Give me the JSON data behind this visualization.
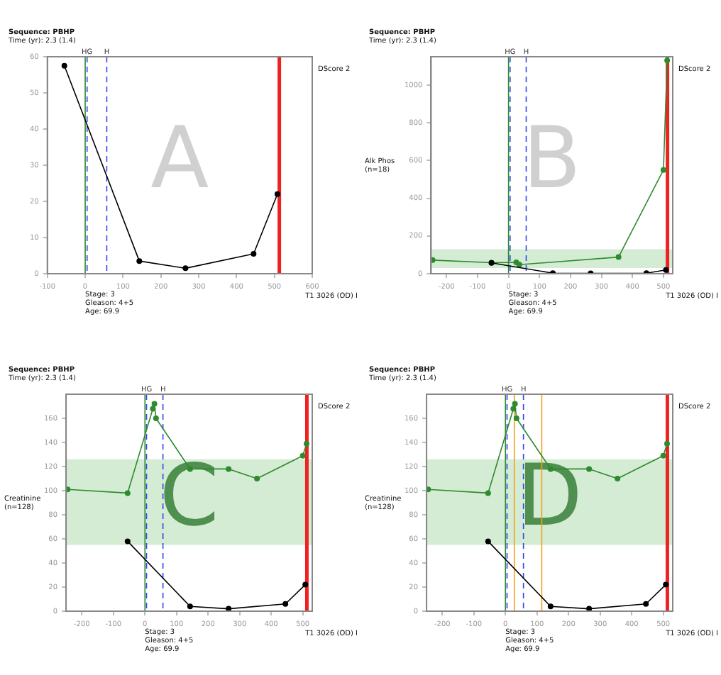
{
  "chart_data": [
    {
      "type": "line",
      "title": "Sequence: PBHP",
      "subtitle": "Time (yr): 2.3 (1.4)",
      "annotations": [
        "DScore 2",
        "Stage: 3",
        "Gleason: 4+5",
        "Age: 69.9",
        "T1 3026 (OD) I",
        "A"
      ],
      "xlim": [
        -100,
        600
      ],
      "xticks": [
        -100,
        0,
        100,
        200,
        300,
        400,
        500,
        600
      ],
      "ylim": [
        0,
        60
      ],
      "yticks": [
        0,
        10,
        20,
        30,
        40,
        50,
        60
      ],
      "grid": false,
      "legend": false,
      "marker": "circle",
      "series": [
        {
          "color": "#000000",
          "x": [
            -55,
            143,
            265,
            445,
            508
          ],
          "values": [
            57.5,
            3.5,
            1.5,
            5.5,
            22
          ]
        }
      ],
      "ref_lines": [
        {
          "axis": "x",
          "value": 0,
          "color": "#2a8a2a",
          "line_style": "solid"
        },
        {
          "axis": "x",
          "value": 5,
          "label": "HG",
          "color": "#3344ee",
          "line_style": "dashed"
        },
        {
          "axis": "x",
          "value": 57,
          "label": "H",
          "color": "#3344ee",
          "line_style": "dashed"
        },
        {
          "axis": "x",
          "value": 513,
          "color": "#ee2222",
          "line_style": "solid"
        }
      ]
    },
    {
      "type": "line",
      "title": "Sequence: PBHP",
      "subtitle": "Time (yr): 2.3 (1.4)",
      "ylabel": "Alk Phos (n=18)",
      "annotations": [
        "DScore 2",
        "Stage: 3",
        "Gleason: 4+5",
        "Age: 69.9",
        "T1 3026 (OD) I",
        "B"
      ],
      "xlim": [
        -250,
        530
      ],
      "xticks": [
        -200,
        -100,
        0,
        100,
        200,
        300,
        400,
        500
      ],
      "ylim": [
        0,
        1150
      ],
      "yticks": [
        0,
        200,
        400,
        600,
        800,
        1000
      ],
      "grid": false,
      "legend": false,
      "marker": "circle",
      "series": [
        {
          "color": "#000000",
          "x": [
            -55,
            143,
            265,
            445,
            508
          ],
          "values": [
            57,
            3,
            2,
            3,
            20
          ]
        },
        {
          "color": "#2e8b2e",
          "x": [
            -245,
            -55,
            25,
            35,
            355,
            500,
            512
          ],
          "values": [
            72,
            58,
            60,
            48,
            88,
            550,
            1130
          ]
        }
      ],
      "bands": [
        {
          "axis": "y",
          "from": 30,
          "to": 130,
          "color": "#d4ecd4"
        }
      ],
      "ref_lines": [
        {
          "axis": "x",
          "value": 0,
          "color": "#2a8a2a",
          "line_style": "solid"
        },
        {
          "axis": "x",
          "value": 5,
          "label": "HG",
          "color": "#3344ee",
          "line_style": "dashed"
        },
        {
          "axis": "x",
          "value": 57,
          "label": "H",
          "color": "#3344ee",
          "line_style": "dashed"
        },
        {
          "axis": "x",
          "value": 513,
          "color": "#ee2222",
          "line_style": "solid"
        }
      ]
    },
    {
      "type": "line",
      "title": "Sequence: PBHP",
      "subtitle": "Time (yr): 2.3 (1.4)",
      "ylabel": "Creatinine (n=128)",
      "annotations": [
        "DScore 2",
        "Stage: 3",
        "Gleason: 4+5",
        "Age: 69.9",
        "T1 3026 (OD) I",
        "C"
      ],
      "xlim": [
        -250,
        530
      ],
      "xticks": [
        -200,
        -100,
        0,
        100,
        200,
        300,
        400,
        500
      ],
      "ylim": [
        0,
        180
      ],
      "yticks": [
        0,
        20,
        40,
        60,
        80,
        100,
        120,
        140,
        160
      ],
      "grid": false,
      "legend": false,
      "marker": "circle",
      "series": [
        {
          "color": "#000000",
          "x": [
            -55,
            143,
            265,
            445,
            508
          ],
          "values": [
            58,
            4,
            2,
            6,
            22
          ]
        },
        {
          "color": "#2e8b2e",
          "x": [
            -245,
            -55,
            25,
            30,
            35,
            143,
            265,
            355,
            500,
            512
          ],
          "values": [
            101,
            98,
            168,
            172,
            160,
            118,
            118,
            110,
            129,
            139
          ]
        }
      ],
      "bands": [
        {
          "axis": "y",
          "from": 55,
          "to": 126,
          "color": "#d4ecd4"
        }
      ],
      "ref_lines": [
        {
          "axis": "x",
          "value": 0,
          "color": "#2a8a2a",
          "line_style": "solid"
        },
        {
          "axis": "x",
          "value": 5,
          "label": "HG",
          "color": "#3344ee",
          "line_style": "dashed"
        },
        {
          "axis": "x",
          "value": 57,
          "label": "H",
          "color": "#3344ee",
          "line_style": "dashed"
        },
        {
          "axis": "x",
          "value": 513,
          "color": "#ee2222",
          "line_style": "solid"
        }
      ]
    },
    {
      "type": "line",
      "title": "Sequence: PBHP",
      "subtitle": "Time (yr): 2.3 (1.4)",
      "ylabel": "Creatinine (n=128)",
      "annotations": [
        "DScore 2",
        "Stage: 3",
        "Gleason: 4+5",
        "Age: 69.9",
        "T1 3026 (OD) I",
        "D"
      ],
      "xlim": [
        -250,
        530
      ],
      "xticks": [
        -200,
        -100,
        0,
        100,
        200,
        300,
        400,
        500
      ],
      "ylim": [
        0,
        180
      ],
      "yticks": [
        0,
        20,
        40,
        60,
        80,
        100,
        120,
        140,
        160
      ],
      "grid": false,
      "legend": false,
      "marker": "circle",
      "series": [
        {
          "color": "#000000",
          "x": [
            -55,
            143,
            265,
            445,
            508
          ],
          "values": [
            58,
            4,
            2,
            6,
            22
          ]
        },
        {
          "color": "#2e8b2e",
          "x": [
            -245,
            -55,
            25,
            30,
            35,
            143,
            265,
            355,
            500,
            512
          ],
          "values": [
            101,
            98,
            168,
            172,
            160,
            118,
            118,
            110,
            129,
            139
          ]
        }
      ],
      "bands": [
        {
          "axis": "y",
          "from": 55,
          "to": 126,
          "color": "#d4ecd4"
        }
      ],
      "ref_lines": [
        {
          "axis": "x",
          "value": 0,
          "color": "#2a8a2a",
          "line_style": "solid"
        },
        {
          "axis": "x",
          "value": 5,
          "label": "HG",
          "color": "#3344ee",
          "line_style": "dashed"
        },
        {
          "axis": "x",
          "value": 57,
          "label": "H",
          "color": "#3344ee",
          "line_style": "dashed"
        },
        {
          "axis": "x",
          "value": 28,
          "color": "#f0a020",
          "line_style": "solid"
        },
        {
          "axis": "x",
          "value": 115,
          "color": "#f0a020",
          "line_style": "solid"
        },
        {
          "axis": "x",
          "value": 513,
          "color": "#ee2222",
          "line_style": "solid"
        }
      ]
    }
  ]
}
